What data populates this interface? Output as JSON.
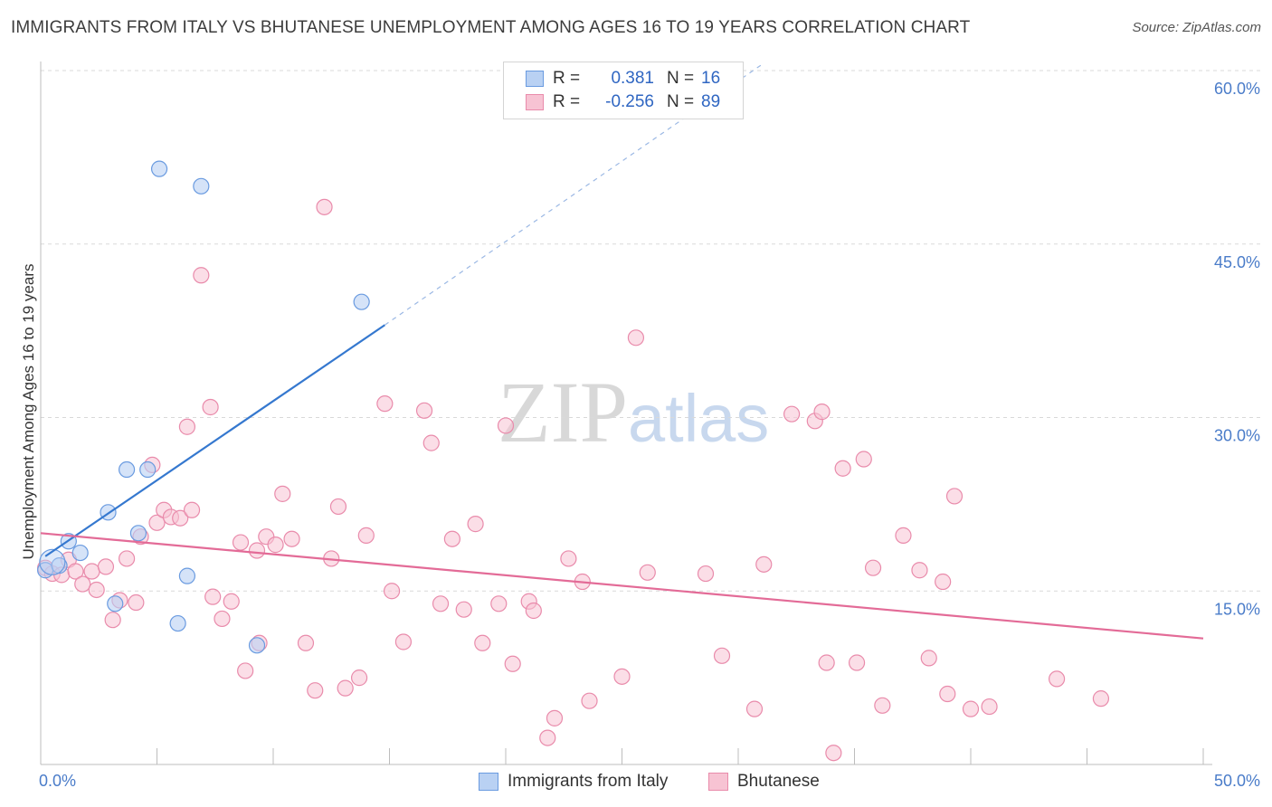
{
  "title": "IMMIGRANTS FROM ITALY VS BHUTANESE UNEMPLOYMENT AMONG AGES 16 TO 19 YEARS CORRELATION CHART",
  "source": "Source: ZipAtlas.com",
  "watermark": {
    "zip": "ZIP",
    "atlas": "atlas"
  },
  "legend": {
    "rows": [
      {
        "r_label": "R =",
        "r_value": "0.381",
        "n_label": "N =",
        "n_value": "16"
      },
      {
        "r_label": "R =",
        "r_value": "-0.256",
        "n_label": "N =",
        "n_value": "89"
      }
    ]
  },
  "bottom_legend": [
    "Immigrants from Italy",
    "Bhutanese"
  ],
  "colors": {
    "italy_fill": "#b9d1f3",
    "italy_stroke": "#6a9be0",
    "italy_line": "#3578cf",
    "bhutan_fill": "#f7c3d3",
    "bhutan_stroke": "#e98bab",
    "bhutan_line": "#e36b97",
    "grid": "#d9d9d9",
    "tick_text": "#4a7cc9"
  },
  "chart_data": {
    "type": "scatter",
    "title": "IMMIGRANTS FROM ITALY VS BHUTANESE UNEMPLOYMENT AMONG AGES 16 TO 19 YEARS CORRELATION CHART",
    "xlabel": "",
    "ylabel": "Unemployment Among Ages 16 to 19 years",
    "xlim": [
      0,
      50
    ],
    "ylim": [
      0,
      60
    ],
    "x_tick_labels": [
      "0.0%",
      "50.0%"
    ],
    "y_ticks": [
      15,
      30,
      45,
      60
    ],
    "y_tick_labels": [
      "15.0%",
      "30.0%",
      "45.0%",
      "60.0%"
    ],
    "grid": true,
    "legend_position": "top-center",
    "series": [
      {
        "name": "Immigrants from Italy",
        "points": [
          [
            0.2,
            16.8
          ],
          [
            0.8,
            17.2
          ],
          [
            1.2,
            19.3
          ],
          [
            1.7,
            18.3
          ],
          [
            2.9,
            21.8
          ],
          [
            3.2,
            13.9
          ],
          [
            3.7,
            25.5
          ],
          [
            4.2,
            20.0
          ],
          [
            4.6,
            25.5
          ],
          [
            5.1,
            51.5
          ],
          [
            5.9,
            12.2
          ],
          [
            6.3,
            16.3
          ],
          [
            6.9,
            50.0
          ],
          [
            9.3,
            10.3
          ],
          [
            13.8,
            40.0
          ],
          [
            0.5,
            17.5
          ]
        ],
        "trend": {
          "x_start": 0.2,
          "y_start": 18.0,
          "x_end": 14.8,
          "y_end": 38.0,
          "dashed_to_x": 31.0,
          "dashed_to_y": 60.5
        }
      },
      {
        "name": "Bhutanese",
        "points": [
          [
            0.2,
            17.0
          ],
          [
            0.5,
            16.5
          ],
          [
            0.9,
            16.4
          ],
          [
            1.2,
            17.7
          ],
          [
            1.5,
            16.7
          ],
          [
            1.8,
            15.6
          ],
          [
            2.2,
            16.7
          ],
          [
            2.4,
            15.1
          ],
          [
            2.8,
            17.1
          ],
          [
            3.1,
            12.5
          ],
          [
            3.4,
            14.2
          ],
          [
            3.7,
            17.8
          ],
          [
            4.1,
            14.0
          ],
          [
            4.3,
            19.7
          ],
          [
            4.8,
            25.9
          ],
          [
            5.0,
            20.9
          ],
          [
            5.3,
            22.0
          ],
          [
            5.6,
            21.4
          ],
          [
            6.0,
            21.3
          ],
          [
            6.3,
            29.2
          ],
          [
            6.5,
            22.0
          ],
          [
            6.9,
            42.3
          ],
          [
            7.3,
            30.9
          ],
          [
            7.4,
            14.5
          ],
          [
            7.8,
            12.6
          ],
          [
            8.2,
            14.1
          ],
          [
            8.6,
            19.2
          ],
          [
            8.8,
            8.1
          ],
          [
            9.3,
            18.5
          ],
          [
            9.4,
            10.5
          ],
          [
            9.7,
            19.7
          ],
          [
            10.1,
            19.0
          ],
          [
            10.4,
            23.4
          ],
          [
            10.8,
            19.5
          ],
          [
            11.4,
            10.5
          ],
          [
            11.8,
            6.4
          ],
          [
            12.2,
            48.2
          ],
          [
            12.5,
            17.8
          ],
          [
            12.8,
            22.3
          ],
          [
            13.1,
            6.6
          ],
          [
            13.7,
            7.5
          ],
          [
            14.0,
            19.8
          ],
          [
            14.8,
            31.2
          ],
          [
            15.1,
            15.0
          ],
          [
            15.6,
            10.6
          ],
          [
            16.5,
            30.6
          ],
          [
            16.8,
            27.8
          ],
          [
            17.2,
            13.9
          ],
          [
            17.7,
            19.5
          ],
          [
            18.2,
            13.4
          ],
          [
            18.7,
            20.8
          ],
          [
            19.0,
            10.5
          ],
          [
            19.7,
            13.9
          ],
          [
            20.0,
            29.3
          ],
          [
            20.3,
            8.7
          ],
          [
            21.0,
            14.1
          ],
          [
            21.2,
            13.3
          ],
          [
            21.8,
            2.3
          ],
          [
            22.1,
            4.0
          ],
          [
            22.7,
            17.8
          ],
          [
            23.3,
            15.8
          ],
          [
            23.6,
            5.5
          ],
          [
            25.0,
            7.6
          ],
          [
            25.6,
            36.9
          ],
          [
            26.1,
            16.6
          ],
          [
            28.6,
            16.5
          ],
          [
            29.3,
            9.4
          ],
          [
            30.7,
            4.8
          ],
          [
            31.1,
            17.3
          ],
          [
            32.3,
            30.3
          ],
          [
            33.3,
            29.7
          ],
          [
            33.6,
            30.5
          ],
          [
            33.8,
            8.8
          ],
          [
            34.1,
            1.0
          ],
          [
            34.5,
            25.6
          ],
          [
            35.1,
            8.8
          ],
          [
            35.4,
            26.4
          ],
          [
            35.8,
            17.0
          ],
          [
            36.2,
            5.1
          ],
          [
            37.1,
            19.8
          ],
          [
            37.8,
            16.8
          ],
          [
            38.2,
            9.2
          ],
          [
            38.8,
            15.8
          ],
          [
            39.0,
            6.1
          ],
          [
            39.3,
            23.2
          ],
          [
            40.0,
            4.8
          ],
          [
            40.8,
            5.0
          ],
          [
            43.7,
            7.4
          ],
          [
            45.6,
            5.7
          ]
        ],
        "trend": {
          "x_start": 0.0,
          "y_start": 20.0,
          "x_end": 50.0,
          "y_end": 10.9
        }
      }
    ]
  }
}
